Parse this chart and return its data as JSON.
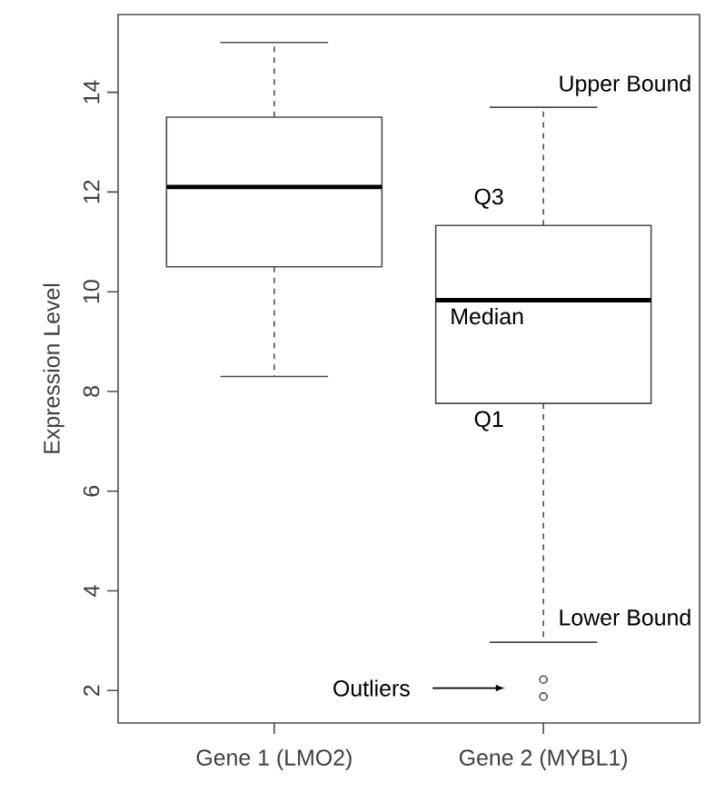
{
  "chart_data": {
    "type": "box",
    "ylabel": "Expression Level",
    "categories": [
      "Gene 1 (LMO2)",
      "Gene 2 (MYBL1)"
    ],
    "boxes": [
      {
        "low": 8.3,
        "q1": 10.5,
        "median": 12.1,
        "q3": 13.5,
        "high": 15.0
      },
      {
        "low": 2.97,
        "q1": 7.76,
        "median": 9.83,
        "q3": 11.33,
        "high": 13.7,
        "outliers": [
          2.22,
          1.88
        ]
      }
    ],
    "ylim": [
      1.35,
      15.56
    ],
    "yticks": [
      2,
      4,
      6,
      8,
      10,
      12,
      14
    ],
    "grid": false,
    "annotations": [
      "Upper Bound",
      "Q3",
      "Median",
      "Q1",
      "Lower Bound",
      "Outliers"
    ]
  }
}
